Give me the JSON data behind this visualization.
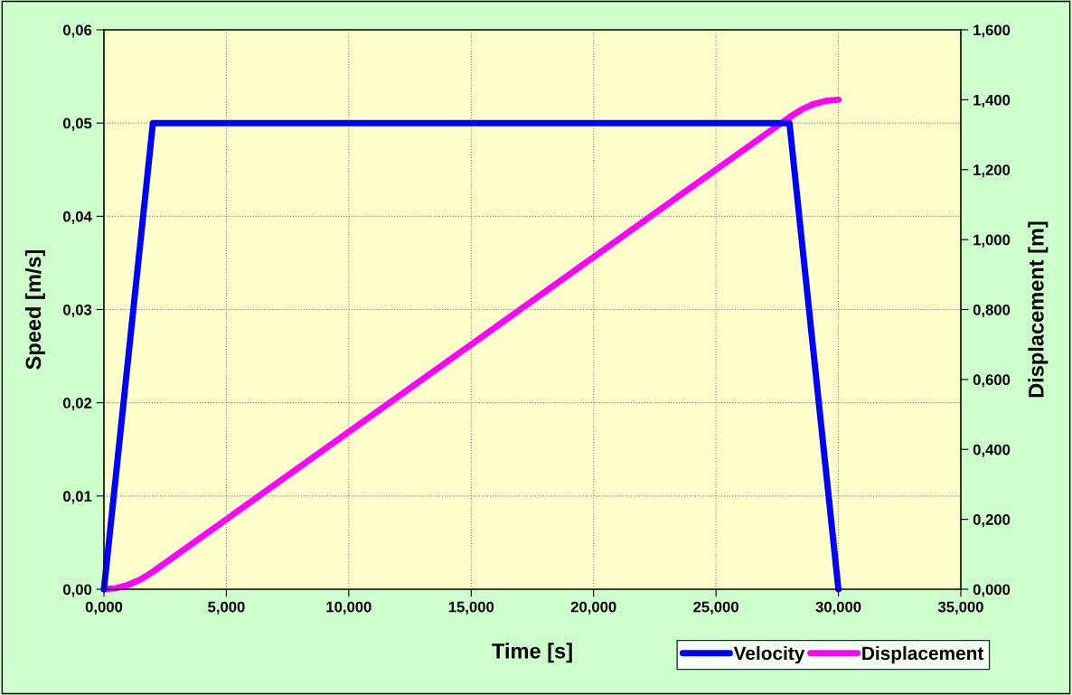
{
  "chart_data": {
    "type": "line",
    "xlabel": "Time [s]",
    "ylabel": "Speed [m/s]",
    "y2label": "Displacement [m]",
    "xlim": [
      0,
      35
    ],
    "xticks": [
      {
        "value": 0,
        "label": "0,000"
      },
      {
        "value": 5,
        "label": "5,000"
      },
      {
        "value": 10,
        "label": "10,000"
      },
      {
        "value": 15,
        "label": "15,000"
      },
      {
        "value": 20,
        "label": "20,000"
      },
      {
        "value": 25,
        "label": "25,000"
      },
      {
        "value": 30,
        "label": "30,000"
      },
      {
        "value": 35,
        "label": "35,000"
      }
    ],
    "ylim": [
      0,
      0.06
    ],
    "yticks": [
      {
        "value": 0,
        "label": "0,00"
      },
      {
        "value": 0.01,
        "label": "0,01"
      },
      {
        "value": 0.02,
        "label": "0,02"
      },
      {
        "value": 0.03,
        "label": "0,03"
      },
      {
        "value": 0.04,
        "label": "0,04"
      },
      {
        "value": 0.05,
        "label": "0,05"
      },
      {
        "value": 0.06,
        "label": "0,06"
      }
    ],
    "y2lim": [
      0,
      1.6
    ],
    "y2ticks": [
      {
        "value": 0,
        "label": "0,000"
      },
      {
        "value": 0.2,
        "label": "0,200"
      },
      {
        "value": 0.4,
        "label": "0,400"
      },
      {
        "value": 0.6,
        "label": "0,600"
      },
      {
        "value": 0.8,
        "label": "0,800"
      },
      {
        "value": 1.0,
        "label": "1,000"
      },
      {
        "value": 1.2,
        "label": "1,200"
      },
      {
        "value": 1.4,
        "label": "1,400"
      },
      {
        "value": 1.6,
        "label": "1,600"
      }
    ],
    "grid": true,
    "legend": "bottom right",
    "marker": "none",
    "line_style": "solid",
    "series": [
      {
        "name": "Velocity",
        "color": "#0000ff",
        "x": [
          0,
          2,
          28,
          30
        ],
        "values": [
          0,
          0.05,
          0.05,
          0
        ]
      },
      {
        "name": "Displacement",
        "color": "#ff00ff",
        "axis": "y2",
        "x": [
          0,
          0.5,
          1,
          1.5,
          2,
          28,
          28.5,
          29,
          29.5,
          30
        ],
        "values": [
          0,
          0.003,
          0.013,
          0.028,
          0.05,
          1.35,
          1.372,
          1.388,
          1.397,
          1.4
        ]
      }
    ]
  }
}
